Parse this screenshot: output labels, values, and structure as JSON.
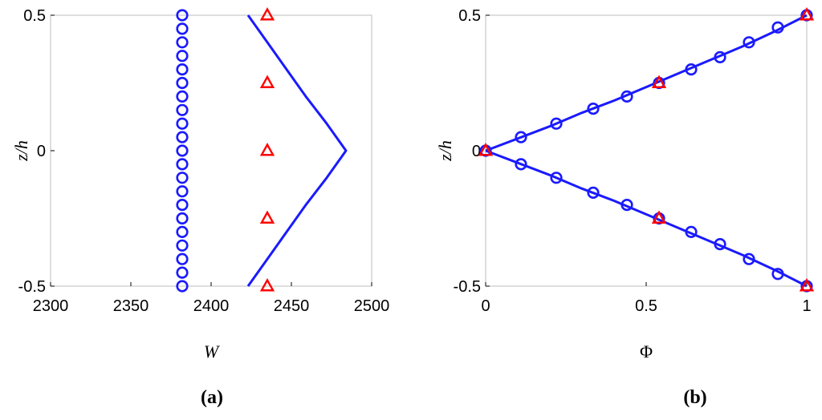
{
  "chart_data": [
    {
      "type": "line",
      "panel_label": "(a)",
      "xlabel": "W",
      "ylabel": "z/h",
      "xlim": [
        2300,
        2500
      ],
      "ylim": [
        -0.5,
        0.5
      ],
      "xticks": [
        "2300",
        "2350",
        "2400",
        "2450",
        "2500"
      ],
      "yticks": [
        "-0.5",
        "0",
        "0.5"
      ],
      "grid": false,
      "colors": {
        "line": "#1a1aff",
        "circles": "#1a1aff",
        "triangles": "#ff0000"
      },
      "series": [
        {
          "style": "line",
          "x": [
            2423,
            2435,
            2447,
            2459,
            2472,
            2484,
            2472,
            2459,
            2447,
            2435,
            2423
          ],
          "y": [
            -0.5,
            -0.4,
            -0.3,
            -0.2,
            -0.1,
            0.0,
            0.1,
            0.2,
            0.3,
            0.4,
            0.5
          ]
        },
        {
          "style": "circle-markers",
          "x": [
            2382,
            2382,
            2382,
            2382,
            2382,
            2382,
            2382,
            2382,
            2382,
            2382,
            2382,
            2382,
            2382,
            2382,
            2382,
            2382,
            2382,
            2382,
            2382,
            2382,
            2382
          ],
          "y": [
            -0.5,
            -0.45,
            -0.4,
            -0.35,
            -0.3,
            -0.25,
            -0.2,
            -0.15,
            -0.1,
            -0.05,
            0.0,
            0.05,
            0.1,
            0.15,
            0.2,
            0.25,
            0.3,
            0.35,
            0.4,
            0.45,
            0.5
          ]
        },
        {
          "style": "triangle-markers",
          "x": [
            2435,
            2435,
            2435,
            2435,
            2435
          ],
          "y": [
            -0.5,
            -0.25,
            0.0,
            0.25,
            0.5
          ]
        }
      ]
    },
    {
      "type": "line",
      "panel_label": "(b)",
      "xlabel": "Φ",
      "ylabel": "z/h",
      "xlim": [
        0,
        1
      ],
      "ylim": [
        -0.5,
        0.5
      ],
      "xticks": [
        "0",
        "0.5",
        "1"
      ],
      "yticks": [
        "-0.5",
        "0",
        "0.5"
      ],
      "grid": false,
      "colors": {
        "line": "#1a1aff",
        "circles": "#1a1aff",
        "triangles": "#ff0000"
      },
      "series": [
        {
          "style": "line",
          "x": [
            0.0,
            0.1,
            0.2,
            0.3,
            0.4,
            0.5,
            0.6,
            0.7,
            0.8,
            0.9,
            1.0
          ],
          "y": [
            0.0,
            0.045,
            0.09,
            0.14,
            0.185,
            0.235,
            0.285,
            0.335,
            0.385,
            0.44,
            0.5
          ]
        },
        {
          "style": "line",
          "x": [
            0.0,
            0.1,
            0.2,
            0.3,
            0.4,
            0.5,
            0.6,
            0.7,
            0.8,
            0.9,
            1.0
          ],
          "y": [
            0.0,
            -0.045,
            -0.09,
            -0.14,
            -0.185,
            -0.235,
            -0.285,
            -0.335,
            -0.385,
            -0.44,
            -0.5
          ]
        },
        {
          "style": "circle-markers",
          "x": [
            0.0,
            0.11,
            0.22,
            0.335,
            0.44,
            0.54,
            0.64,
            0.73,
            0.82,
            0.91,
            1.0,
            0.11,
            0.22,
            0.335,
            0.44,
            0.54,
            0.64,
            0.73,
            0.82,
            0.91,
            1.0
          ],
          "y": [
            0.0,
            0.05,
            0.1,
            0.155,
            0.2,
            0.25,
            0.3,
            0.345,
            0.4,
            0.455,
            0.5,
            -0.05,
            -0.1,
            -0.155,
            -0.2,
            -0.25,
            -0.3,
            -0.345,
            -0.4,
            -0.455,
            -0.5
          ]
        },
        {
          "style": "triangle-markers",
          "x": [
            0.0,
            0.54,
            1.0,
            0.54,
            1.0
          ],
          "y": [
            0.0,
            0.25,
            0.5,
            -0.25,
            -0.5
          ]
        }
      ]
    }
  ]
}
